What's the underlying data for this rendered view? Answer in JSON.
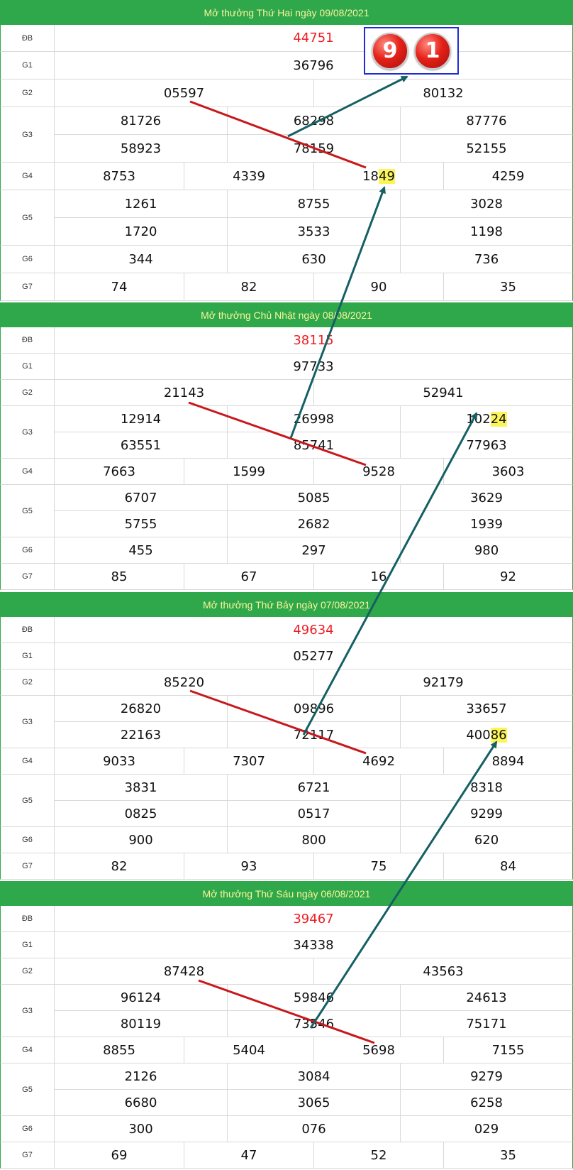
{
  "days": [
    {
      "title": "Mở thưởng Thứ Hai ngày 09/08/2021",
      "rows": [
        {
          "label": "ĐB",
          "values": [
            "44751"
          ]
        },
        {
          "label": "G1",
          "values": [
            "36796"
          ]
        },
        {
          "label": "G2",
          "values": [
            "05597",
            "80132"
          ]
        },
        {
          "label": "G3",
          "values": [
            "81726",
            "68298",
            "87776",
            "58923",
            "78159",
            "52155"
          ]
        },
        {
          "label": "G4",
          "values": [
            "8753",
            "4339",
            "1849",
            "4259"
          ]
        },
        {
          "label": "G5",
          "values": [
            "1261",
            "8755",
            "3028",
            "1720",
            "3533",
            "1198"
          ]
        },
        {
          "label": "G6",
          "values": [
            "344",
            "630",
            "736"
          ]
        },
        {
          "label": "G7",
          "values": [
            "74",
            "82",
            "90",
            "35"
          ]
        }
      ]
    },
    {
      "title": "Mở thưởng Chủ Nhật ngày 08/08/2021",
      "rows": [
        {
          "label": "ĐB",
          "values": [
            "38115"
          ]
        },
        {
          "label": "G1",
          "values": [
            "97733"
          ]
        },
        {
          "label": "G2",
          "values": [
            "21143",
            "52941"
          ]
        },
        {
          "label": "G3",
          "values": [
            "12914",
            "26998",
            "10224",
            "63551",
            "85741",
            "77963"
          ]
        },
        {
          "label": "G4",
          "values": [
            "7663",
            "1599",
            "9528",
            "3603"
          ]
        },
        {
          "label": "G5",
          "values": [
            "6707",
            "5085",
            "3629",
            "5755",
            "2682",
            "1939"
          ]
        },
        {
          "label": "G6",
          "values": [
            "455",
            "297",
            "980"
          ]
        },
        {
          "label": "G7",
          "values": [
            "85",
            "67",
            "16",
            "92"
          ]
        }
      ]
    },
    {
      "title": "Mở thưởng Thứ Bảy ngày 07/08/2021",
      "rows": [
        {
          "label": "ĐB",
          "values": [
            "49634"
          ]
        },
        {
          "label": "G1",
          "values": [
            "05277"
          ]
        },
        {
          "label": "G2",
          "values": [
            "85220",
            "92179"
          ]
        },
        {
          "label": "G3",
          "values": [
            "26820",
            "09896",
            "33657",
            "22163",
            "72117",
            "40086"
          ]
        },
        {
          "label": "G4",
          "values": [
            "9033",
            "7307",
            "4692",
            "8894"
          ]
        },
        {
          "label": "G5",
          "values": [
            "3831",
            "6721",
            "8318",
            "0825",
            "0517",
            "9299"
          ]
        },
        {
          "label": "G6",
          "values": [
            "900",
            "800",
            "620"
          ]
        },
        {
          "label": "G7",
          "values": [
            "82",
            "93",
            "75",
            "84"
          ]
        }
      ]
    },
    {
      "title": "Mở thưởng Thứ Sáu ngày 06/08/2021",
      "rows": [
        {
          "label": "ĐB",
          "values": [
            "39467"
          ]
        },
        {
          "label": "G1",
          "values": [
            "34338"
          ]
        },
        {
          "label": "G2",
          "values": [
            "87428",
            "43563"
          ]
        },
        {
          "label": "G3",
          "values": [
            "96124",
            "59846",
            "24613",
            "80119",
            "73546",
            "75171"
          ]
        },
        {
          "label": "G4",
          "values": [
            "8855",
            "5404",
            "5698",
            "7155"
          ]
        },
        {
          "label": "G5",
          "values": [
            "2126",
            "3084",
            "9279",
            "6680",
            "3065",
            "6258"
          ]
        },
        {
          "label": "G6",
          "values": [
            "300",
            "076",
            "029"
          ]
        },
        {
          "label": "G7",
          "values": [
            "69",
            "47",
            "52",
            "35"
          ]
        }
      ]
    }
  ],
  "highlights": [
    {
      "day": 0,
      "row": "G4",
      "index": 2,
      "digits": 2
    },
    {
      "day": 1,
      "row": "G3",
      "index": 2,
      "digits": 2
    },
    {
      "day": 2,
      "row": "G3",
      "index": 5,
      "digits": 2
    }
  ],
  "prediction": {
    "digits": [
      "9",
      "1"
    ]
  },
  "colors": {
    "header_bg": "#2ea84a",
    "header_text": "#fbf59c",
    "special_prize": "#ee1d23",
    "highlight": "#fbf55a",
    "red_line": "#c8181b",
    "teal_arrow": "#146064",
    "badge_border": "#1e2bd6"
  }
}
